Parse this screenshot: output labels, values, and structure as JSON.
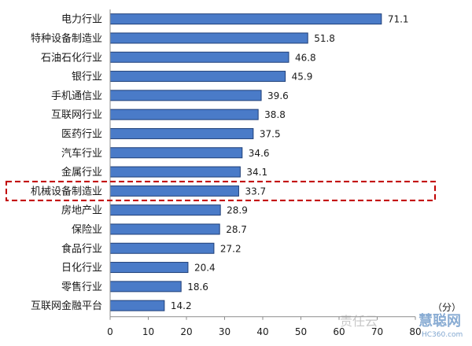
{
  "chart_data": {
    "type": "bar",
    "orientation": "horizontal",
    "categories": [
      "电力行业",
      "特种设备制造业",
      "石油石化行业",
      "银行业",
      "手机通信业",
      "互联网行业",
      "医药行业",
      "汽车行业",
      "金属行业",
      "机械设备制造业",
      "房地产业",
      "保险业",
      "食品行业",
      "日化行业",
      "零售行业",
      "互联网金融平台"
    ],
    "values": [
      71.1,
      51.8,
      46.8,
      45.9,
      39.6,
      38.8,
      37.5,
      34.6,
      34.1,
      33.7,
      28.9,
      28.7,
      27.2,
      20.4,
      18.6,
      14.2
    ],
    "value_labels": [
      "71.1",
      "51.8",
      "46.8",
      "45.9",
      "39.6",
      "38.8",
      "37.5",
      "34.6",
      "34.1",
      "33.7",
      "28.9",
      "28.7",
      "27.2",
      "20.4",
      "18.6",
      "14.2"
    ],
    "xlim": [
      0,
      80
    ],
    "xticks": [
      "0",
      "10",
      "20",
      "30",
      "40",
      "50",
      "60",
      "70",
      "80"
    ],
    "unit": "（分）",
    "highlighted_category": "机械设备制造业",
    "grid": false,
    "bar_color": "#4a7bc8",
    "bar_stroke": "#1f3f78",
    "highlight_color": "#c00000"
  },
  "watermark": {
    "text_left": "责任云",
    "text_right": "慧聪网",
    "text_sub": "HC360.com"
  }
}
